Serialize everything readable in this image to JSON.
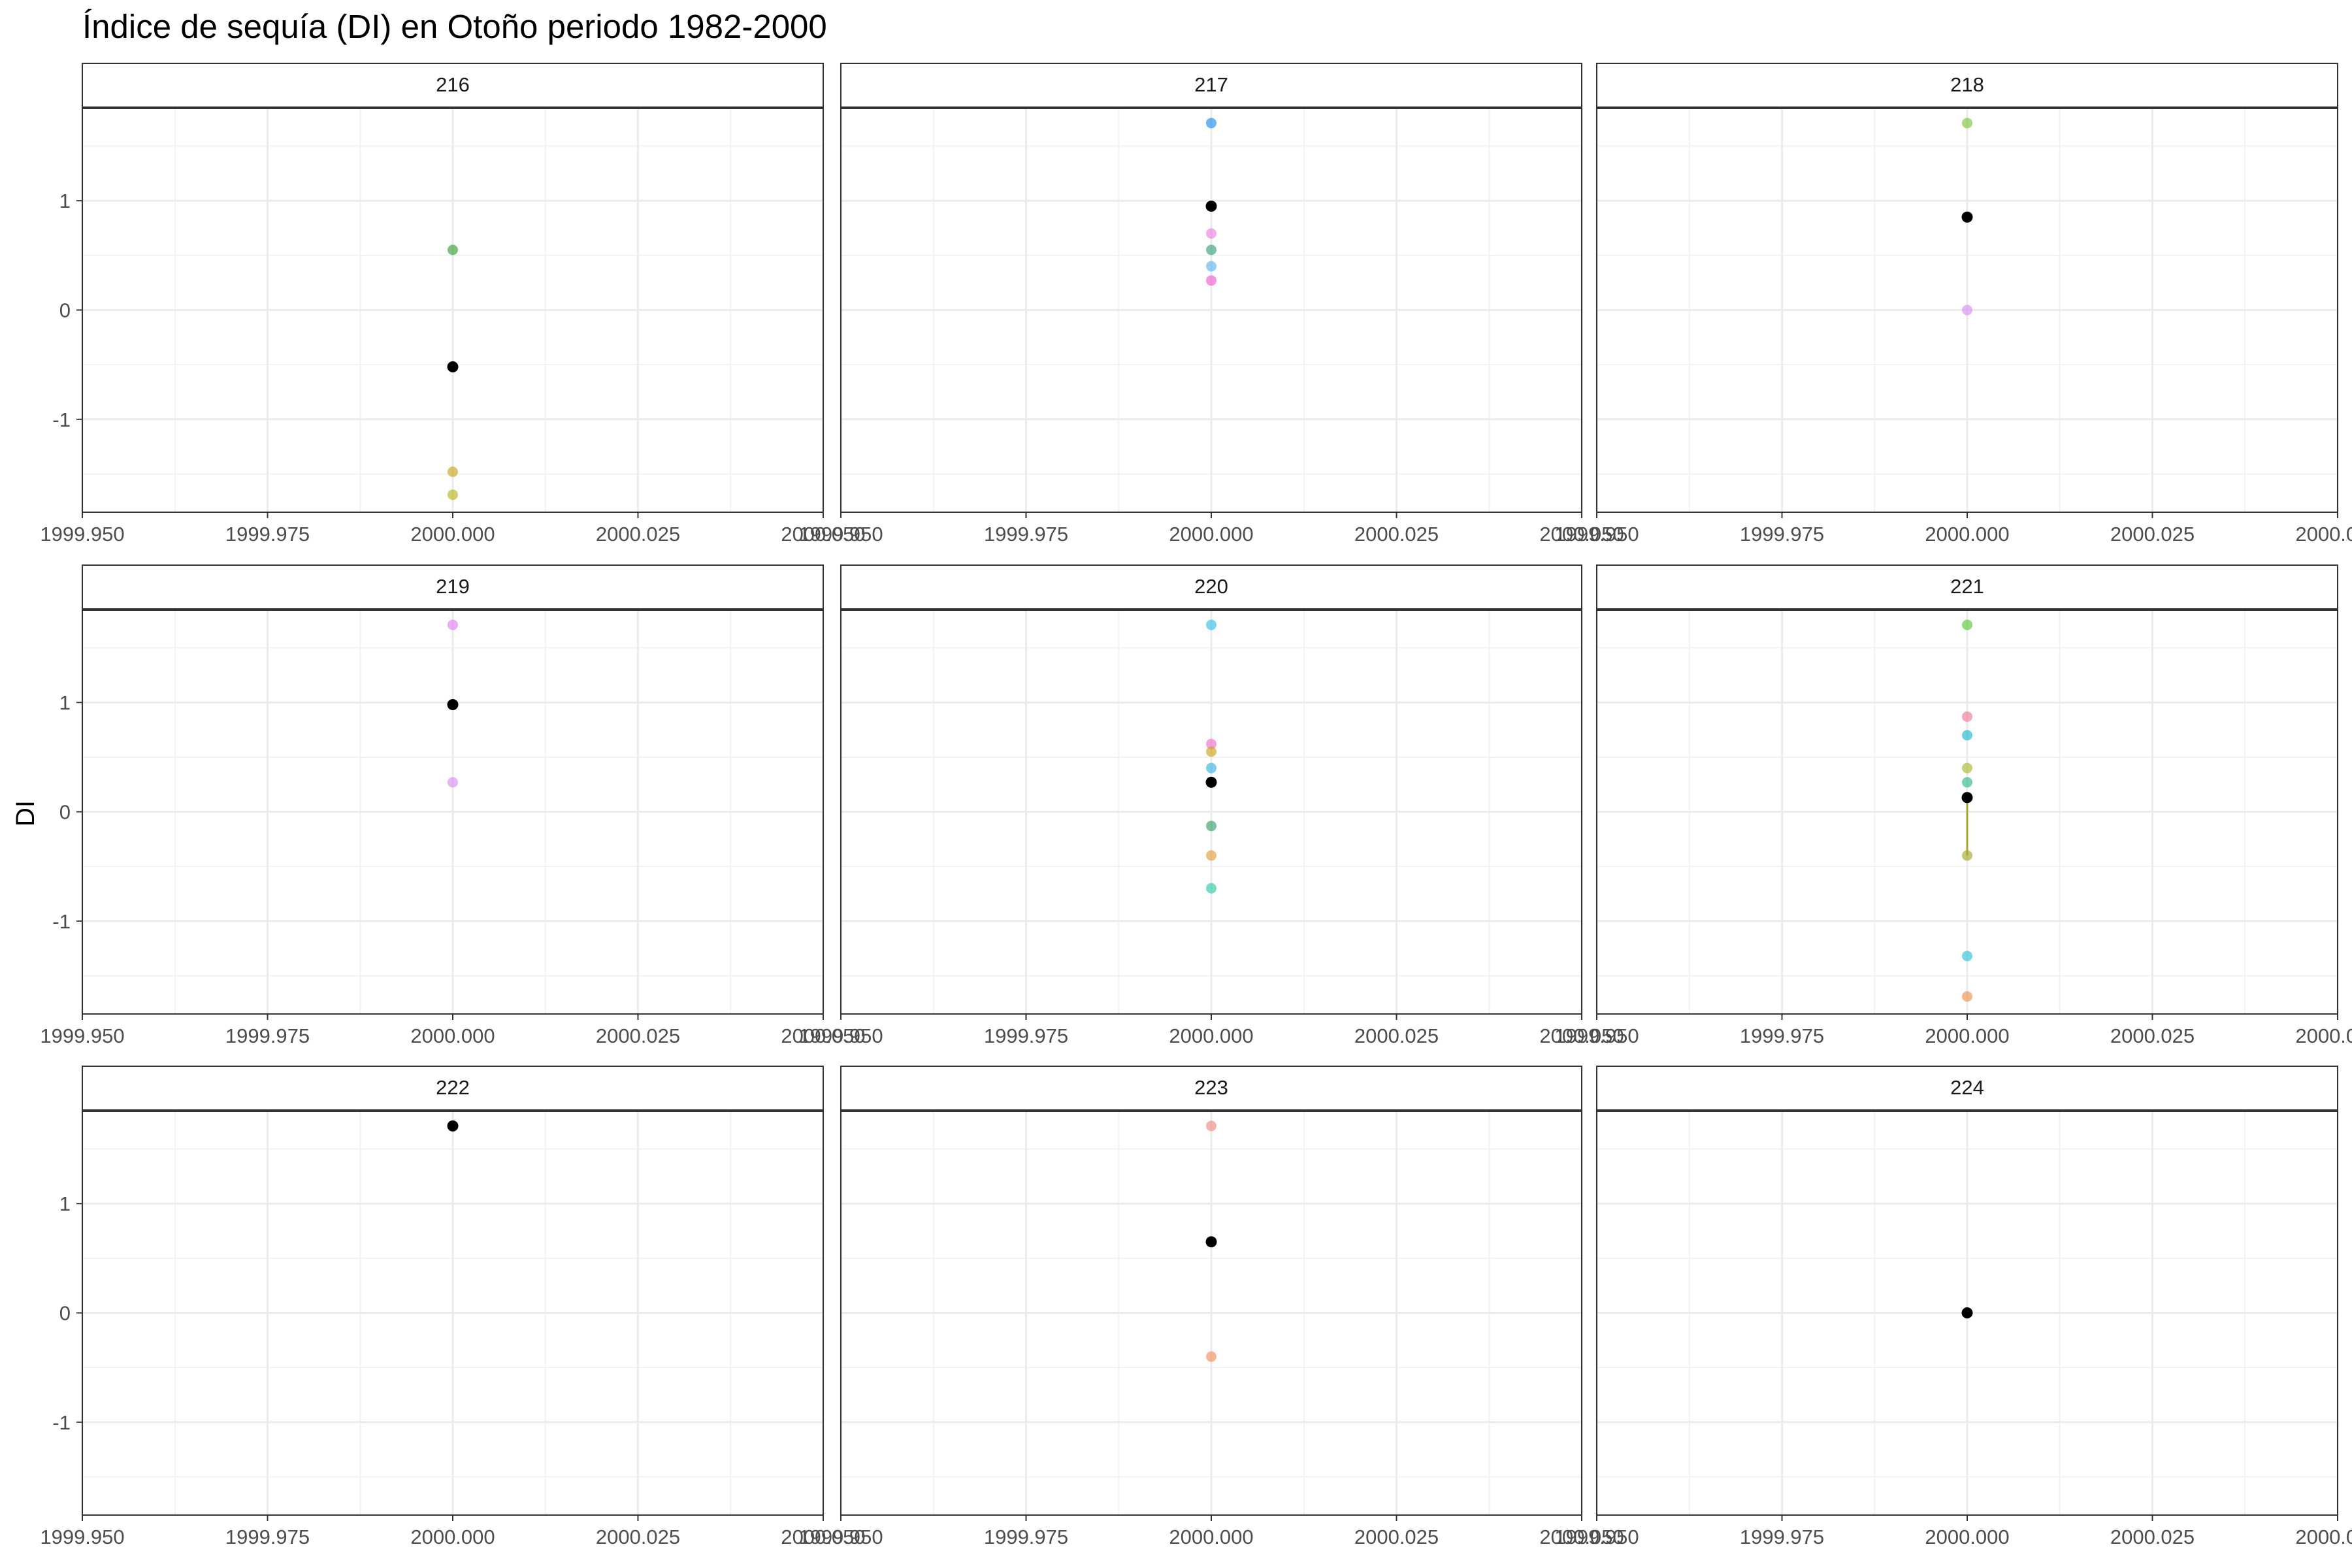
{
  "chart_data": {
    "type": "scatter",
    "title": "Índice de sequía (DI) en Otoño periodo 1982-2000",
    "xlabel": "",
    "ylabel": "DI",
    "xlim": [
      1999.95,
      2000.05
    ],
    "ylim": [
      -1.85,
      1.85
    ],
    "x_ticks": [
      1999.95,
      1999.975,
      2000.0,
      2000.025,
      2000.05
    ],
    "x_tick_labels": [
      "1999.950",
      "1999.975",
      "2000.000",
      "2000.025",
      "2000.050"
    ],
    "y_ticks": [
      -1,
      0,
      1
    ],
    "y_tick_labels": [
      "-1",
      "0",
      "1"
    ],
    "grid": true,
    "legend": "none",
    "panels": [
      {
        "label": "216",
        "mean": 0.0,
        "mean_y": -0.52,
        "points": [
          {
            "x": 2000.0,
            "y": 0.55,
            "color": "#3a9e3a"
          },
          {
            "x": 2000.0,
            "y": -1.48,
            "color": "#c9a41e"
          },
          {
            "x": 2000.0,
            "y": -1.69,
            "color": "#b8b61e"
          }
        ],
        "segments": []
      },
      {
        "label": "217",
        "mean_y": 0.95,
        "points": [
          {
            "x": 2000.0,
            "y": 1.71,
            "color": "#1f8fe8"
          },
          {
            "x": 2000.0,
            "y": 0.7,
            "color": "#ef7fe0"
          },
          {
            "x": 2000.0,
            "y": 0.55,
            "color": "#3aa07a"
          },
          {
            "x": 2000.0,
            "y": 0.4,
            "color": "#5fb3f0"
          },
          {
            "x": 2000.0,
            "y": 0.27,
            "color": "#f060d0"
          }
        ],
        "segments": []
      },
      {
        "label": "218",
        "mean_y": 0.85,
        "points": [
          {
            "x": 2000.0,
            "y": 1.71,
            "color": "#7bc63a"
          },
          {
            "x": 2000.0,
            "y": 0.0,
            "color": "#d58ff0"
          }
        ],
        "segments": []
      },
      {
        "label": "219",
        "mean_y": 0.98,
        "points": [
          {
            "x": 2000.0,
            "y": 1.71,
            "color": "#e080f5"
          },
          {
            "x": 2000.0,
            "y": 0.27,
            "color": "#d58ff0"
          }
        ],
        "segments": []
      },
      {
        "label": "220",
        "mean_y": 0.27,
        "points": [
          {
            "x": 2000.0,
            "y": 1.71,
            "color": "#36c0e8"
          },
          {
            "x": 2000.0,
            "y": 0.62,
            "color": "#f070c8"
          },
          {
            "x": 2000.0,
            "y": 0.55,
            "color": "#c9a41e"
          },
          {
            "x": 2000.0,
            "y": 0.4,
            "color": "#3cb0e0"
          },
          {
            "x": 2000.0,
            "y": -0.13,
            "color": "#3a9e6a"
          },
          {
            "x": 2000.0,
            "y": -0.4,
            "color": "#e0a040"
          },
          {
            "x": 2000.0,
            "y": -0.7,
            "color": "#30c8a8"
          }
        ],
        "segments": []
      },
      {
        "label": "221",
        "mean_y": 0.13,
        "points": [
          {
            "x": 2000.0,
            "y": 1.71,
            "color": "#5ac63a"
          },
          {
            "x": 2000.0,
            "y": 0.87,
            "color": "#f07898"
          },
          {
            "x": 2000.0,
            "y": 0.7,
            "color": "#1ab8d0"
          },
          {
            "x": 2000.0,
            "y": 0.4,
            "color": "#a8b830"
          },
          {
            "x": 2000.0,
            "y": 0.27,
            "color": "#30b890"
          },
          {
            "x": 2000.0,
            "y": -0.4,
            "color": "#a8a830"
          },
          {
            "x": 2000.0,
            "y": -1.32,
            "color": "#30c0d8"
          },
          {
            "x": 2000.0,
            "y": -1.69,
            "color": "#f09050"
          }
        ],
        "segments": [
          {
            "x": 2000.0,
            "y0": 0.13,
            "y1": -0.4,
            "color": "#a8a830"
          }
        ]
      },
      {
        "label": "222",
        "mean_y": 1.71,
        "points": [],
        "segments": []
      },
      {
        "label": "223",
        "mean_y": 0.65,
        "points": [
          {
            "x": 2000.0,
            "y": 1.71,
            "color": "#f08a80"
          },
          {
            "x": 2000.0,
            "y": -0.4,
            "color": "#f09060"
          }
        ],
        "segments": []
      },
      {
        "label": "224",
        "mean_y": 0.0,
        "points": [],
        "segments": []
      }
    ]
  }
}
